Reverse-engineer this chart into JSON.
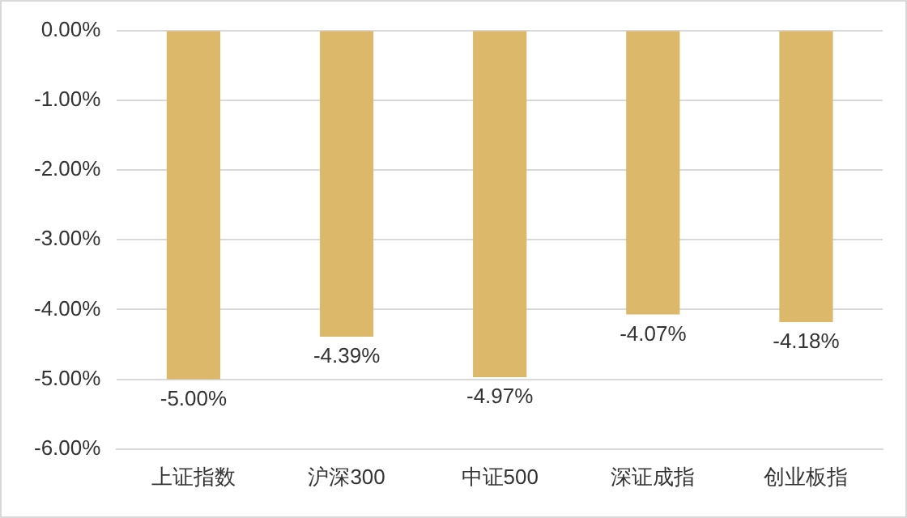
{
  "chart_data": {
    "type": "bar",
    "categories": [
      "上证指数",
      "沪深300",
      "中证500",
      "深证成指",
      "创业板指"
    ],
    "values": [
      -5.0,
      -4.39,
      -4.97,
      -4.07,
      -4.18
    ],
    "value_labels": [
      "-5.00%",
      "-4.39%",
      "-4.97%",
      "-4.07%",
      "-4.18%"
    ],
    "color": "#dbb86a",
    "ylim": [
      -6,
      0
    ],
    "yticks": [
      {
        "value": 0,
        "label": "0.00%"
      },
      {
        "value": -1,
        "label": "-1.00%"
      },
      {
        "value": -2,
        "label": "-2.00%"
      },
      {
        "value": -3,
        "label": "-3.00%"
      },
      {
        "value": -4,
        "label": "-4.00%"
      },
      {
        "value": -5,
        "label": "-5.00%"
      },
      {
        "value": -6,
        "label": "-6.00%"
      }
    ],
    "grid": "y",
    "legend": false
  }
}
